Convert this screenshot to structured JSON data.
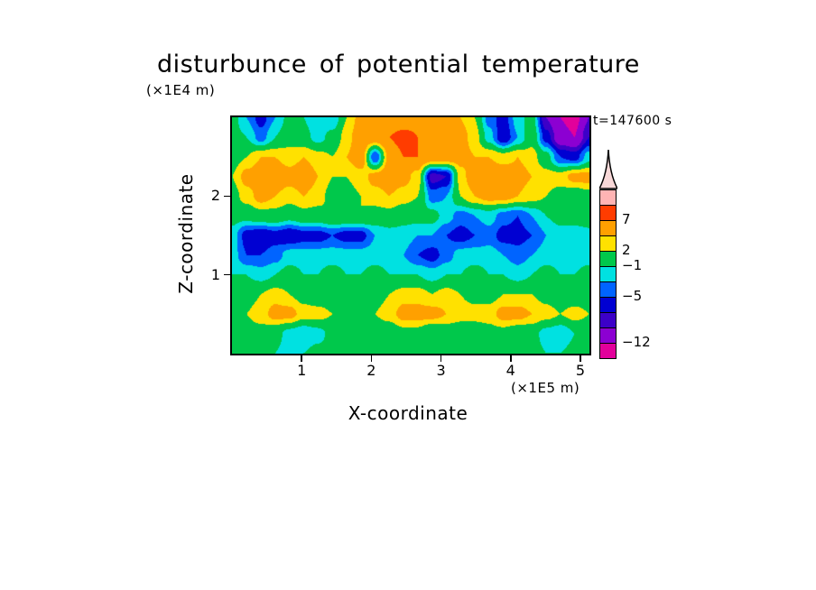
{
  "title": "disturbunce of potential temperature",
  "time_label": "t=147600 s",
  "axes": {
    "x_title": "X-coordinate",
    "x_unit": "(×1E5 m)",
    "y_title": "Z-coordinate",
    "y_unit": "(×1E4 m)"
  },
  "colorbar": {
    "arrow_fill": "#f8d8d8",
    "tick_labels": [
      {
        "text": "7",
        "level": 7
      },
      {
        "text": "2",
        "level": 2
      },
      {
        "text": "−1",
        "level": -1
      },
      {
        "text": "−5",
        "level": -5
      },
      {
        "text": "−12",
        "level": -12
      }
    ]
  },
  "chart_data": {
    "type": "heatmap",
    "title": "disturbunce of potential temperature",
    "xlabel": "X-coordinate (×1E5 m)",
    "ylabel": "Z-coordinate (×1E4 m)",
    "time_annotation": "t=147600 s",
    "x_range": [
      0,
      5.13
    ],
    "z_range": [
      0,
      3.0
    ],
    "x_tick_values": [
      1,
      2,
      3,
      4,
      5
    ],
    "y_tick_values": [
      1,
      2
    ],
    "levels": [
      -12,
      -9,
      -7,
      -5,
      -3,
      -1,
      2,
      4,
      7,
      9
    ],
    "colors": [
      "#e2009b",
      "#8c00d2",
      "#3c00c8",
      "#0000d2",
      "#0064ff",
      "#00e1e1",
      "#00c84b",
      "#ffe100",
      "#ffa000",
      "#ff3c00",
      "#ffb4b4"
    ],
    "grid_note": "estimated field values, 26 columns (x=0..5.13) by 13 rows (top z=3.0 to bottom z=0)",
    "grid": [
      [
        0,
        -3,
        -6,
        -3,
        0,
        -1,
        -3,
        -3,
        2,
        5,
        6,
        5,
        5,
        6,
        6,
        5,
        4,
        2,
        -4,
        -6,
        -2,
        0,
        -9,
        -12,
        -13,
        -9
      ],
      [
        0,
        -1,
        -4,
        -1,
        1,
        0,
        -2,
        0,
        3,
        6,
        6,
        7,
        8,
        7,
        6,
        6,
        5,
        3,
        -2,
        -7,
        -3,
        1,
        -6,
        -11,
        -12,
        -7
      ],
      [
        1,
        2,
        4,
        4,
        3,
        4,
        3,
        2,
        4,
        6,
        -5,
        5,
        7,
        7,
        6,
        6,
        5,
        4,
        4,
        3,
        4,
        3,
        0,
        -5,
        -6,
        -2
      ],
      [
        2,
        5,
        6,
        6,
        5,
        6,
        4,
        2,
        2,
        3,
        5,
        6,
        5,
        3,
        -8,
        -7,
        3,
        6,
        6,
        6,
        5,
        4,
        3,
        3,
        5,
        5
      ],
      [
        1,
        3,
        5,
        4,
        3,
        4,
        3,
        1,
        1,
        2,
        3,
        4,
        3,
        2,
        -4,
        -3,
        2,
        4,
        5,
        5,
        4,
        3,
        2,
        1,
        0,
        1
      ],
      [
        0,
        0,
        1,
        1,
        0,
        1,
        1,
        2,
        2,
        2,
        1,
        1,
        0,
        0,
        0,
        -2,
        -4,
        -3,
        -2,
        -4,
        -5,
        -3,
        -1,
        0,
        1,
        1
      ],
      [
        -2,
        -6,
        -7,
        -6,
        -7,
        -6,
        -6,
        -5,
        -6,
        -6,
        -3,
        -2,
        -2,
        -3,
        -3,
        -5,
        -6,
        -5,
        -4,
        -6,
        -6,
        -5,
        -3,
        -2,
        -3,
        -2
      ],
      [
        -2,
        -5,
        -5,
        -4,
        -2,
        -2,
        -2,
        -2,
        -2,
        -2,
        -2,
        -2,
        -3,
        -5,
        -6,
        -4,
        -2,
        -2,
        -2,
        -3,
        -4,
        -3,
        -2,
        -2,
        -2,
        -2
      ],
      [
        -1,
        -1,
        -2,
        -1,
        0,
        -1,
        -1,
        0,
        -1,
        -1,
        0,
        -1,
        -1,
        -1,
        -2,
        -1,
        -1,
        0,
        -1,
        -1,
        -2,
        -1,
        0,
        -1,
        -1,
        0
      ],
      [
        0,
        1,
        2,
        3,
        2,
        1,
        0,
        0,
        1,
        0,
        1,
        2,
        3,
        3,
        2,
        3,
        2,
        1,
        1,
        2,
        2,
        2,
        1,
        0,
        0,
        0
      ],
      [
        1,
        2,
        3,
        5,
        5,
        3,
        3,
        2,
        2,
        0,
        2,
        3,
        5,
        5,
        5,
        4,
        3,
        3,
        3,
        5,
        5,
        4,
        3,
        2,
        3,
        2
      ],
      [
        0,
        1,
        1,
        0,
        -2,
        -3,
        -2,
        0,
        1,
        1,
        0,
        0,
        1,
        1,
        -1,
        0,
        0,
        0,
        1,
        1,
        0,
        0,
        -2,
        -3,
        -1,
        0
      ],
      [
        0,
        0,
        0,
        -1,
        -2,
        -1,
        0,
        0,
        0,
        0,
        0,
        0,
        -1,
        -1,
        0,
        0,
        0,
        0,
        0,
        -1,
        -1,
        0,
        -1,
        -1,
        0,
        0
      ]
    ]
  }
}
